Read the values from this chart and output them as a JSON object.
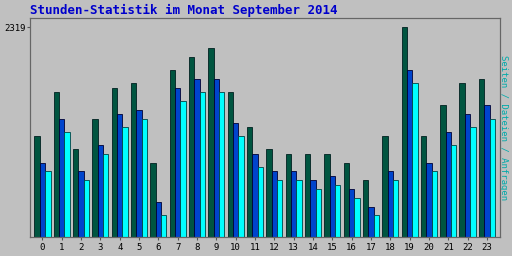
{
  "title": "Stunden-Statistik im Monat September 2014",
  "ylabel": "Seiten / Dateien / Anfragen",
  "hours": [
    0,
    1,
    2,
    3,
    4,
    5,
    6,
    7,
    8,
    9,
    10,
    11,
    12,
    13,
    14,
    15,
    16,
    17,
    18,
    19,
    20,
    21,
    22,
    23
  ],
  "bar1_values": [
    2155,
    2200,
    2145,
    2175,
    2205,
    2215,
    2105,
    2235,
    2245,
    2245,
    2195,
    2160,
    2145,
    2145,
    2135,
    2140,
    2125,
    2105,
    2145,
    2255,
    2155,
    2185,
    2205,
    2215
  ],
  "bar2_values": [
    2165,
    2215,
    2155,
    2185,
    2220,
    2225,
    2120,
    2250,
    2260,
    2260,
    2210,
    2175,
    2155,
    2155,
    2145,
    2150,
    2135,
    2115,
    2155,
    2270,
    2165,
    2200,
    2220,
    2230
  ],
  "bar3_values": [
    2195,
    2245,
    2180,
    2215,
    2250,
    2255,
    2165,
    2270,
    2285,
    2295,
    2245,
    2205,
    2180,
    2175,
    2175,
    2175,
    2165,
    2145,
    2195,
    2319,
    2195,
    2230,
    2255,
    2260
  ],
  "bar1_color": "#00FFFF",
  "bar2_color": "#0044CC",
  "bar3_color": "#005540",
  "ymax": 2319,
  "ytick": 2319,
  "ymin": 2080,
  "background_color": "#C0C0C0",
  "plot_bg_color": "#C0C0C0",
  "title_color": "#0000CC",
  "ylabel_color": "#00AAAA",
  "tick_color": "#000000",
  "bar_width": 0.28
}
